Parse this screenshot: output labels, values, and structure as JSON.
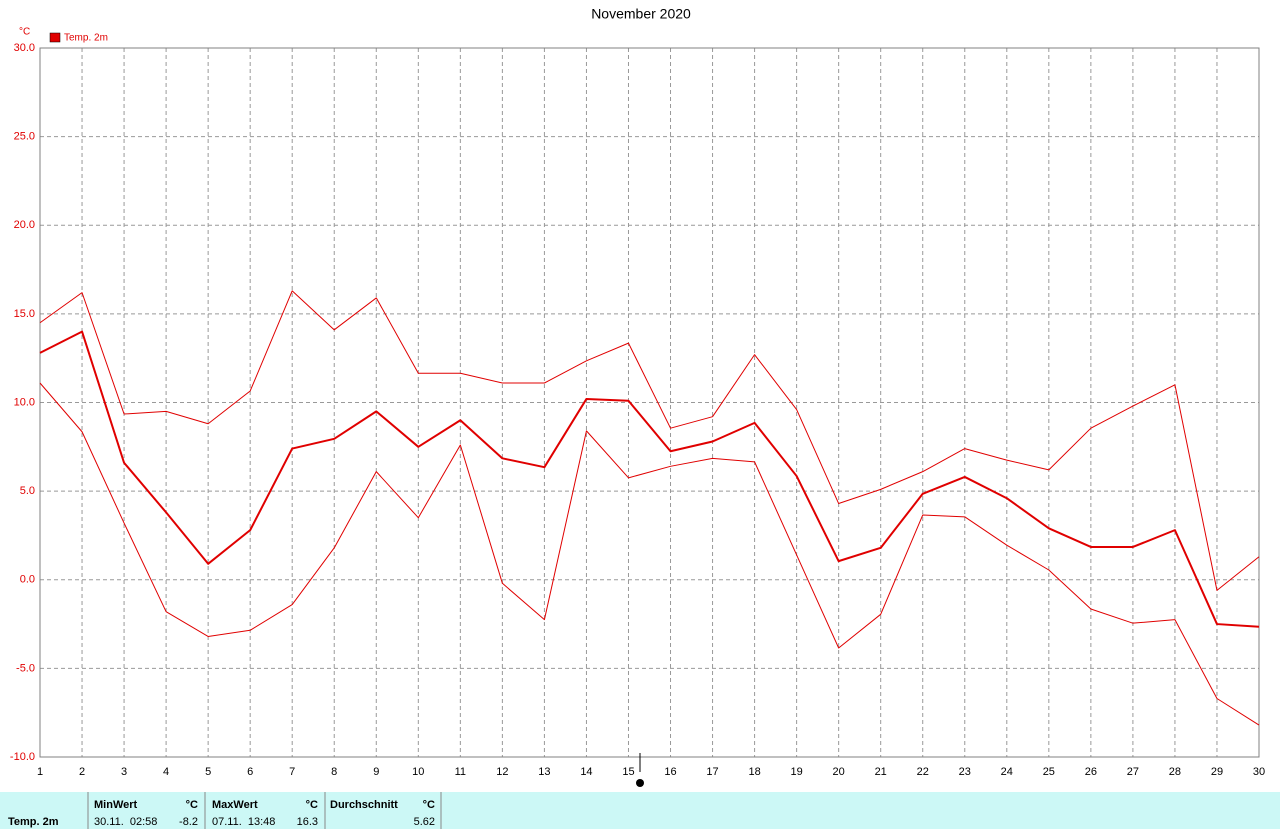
{
  "chart_data": {
    "type": "line",
    "title": "November 2020",
    "y_unit": "°C",
    "legend": [
      {
        "name": "Temp. 2m",
        "color": "#e00000"
      }
    ],
    "x": [
      1,
      2,
      3,
      4,
      5,
      6,
      7,
      8,
      9,
      10,
      11,
      12,
      13,
      14,
      15,
      16,
      17,
      18,
      19,
      20,
      21,
      22,
      23,
      24,
      25,
      26,
      27,
      28,
      29,
      30
    ],
    "xlim": [
      1,
      30
    ],
    "xticks": [
      1,
      2,
      3,
      4,
      5,
      6,
      7,
      8,
      9,
      10,
      11,
      12,
      13,
      14,
      15,
      16,
      17,
      18,
      19,
      20,
      21,
      22,
      23,
      24,
      25,
      26,
      27,
      28,
      29,
      30
    ],
    "ylim": [
      -10,
      30
    ],
    "yticks": [
      {
        "value": -10,
        "label": "-10.0"
      },
      {
        "value": -5,
        "label": "-5.0"
      },
      {
        "value": 0,
        "label": "0.0"
      },
      {
        "value": 5,
        "label": "5.0"
      },
      {
        "value": 10,
        "label": "10.0"
      },
      {
        "value": 15,
        "label": "15.0"
      },
      {
        "value": 20,
        "label": "20.0"
      },
      {
        "value": 25,
        "label": "25.0"
      },
      {
        "value": 30,
        "label": "30.0"
      }
    ],
    "grid": true,
    "series": [
      {
        "color": "#e00000",
        "line_width": 2,
        "values": [
          12.8,
          14.0,
          6.6,
          3.8,
          0.9,
          2.8,
          7.4,
          7.95,
          9.5,
          7.5,
          9.0,
          6.85,
          6.35,
          10.2,
          10.1,
          7.25,
          7.8,
          8.85,
          5.85,
          1.05,
          1.8,
          4.85,
          5.8,
          4.6,
          2.9,
          1.85,
          1.85,
          2.8,
          -2.5,
          -2.65
        ]
      },
      {
        "color": "#e00000",
        "line_width": 1,
        "values": [
          14.5,
          16.2,
          9.35,
          9.5,
          8.8,
          10.65,
          16.3,
          14.1,
          15.9,
          11.65,
          11.65,
          11.1,
          11.1,
          12.35,
          13.35,
          8.55,
          9.2,
          12.7,
          9.6,
          4.3,
          5.1,
          6.1,
          7.4,
          6.75,
          6.2,
          8.55,
          9.8,
          11.0,
          -0.6,
          1.3
        ]
      },
      {
        "color": "#e00000",
        "line_width": 1,
        "values": [
          11.1,
          8.35,
          3.2,
          -1.8,
          -3.2,
          -2.85,
          -1.4,
          1.8,
          6.1,
          3.5,
          7.6,
          -0.2,
          -2.25,
          8.4,
          5.75,
          6.4,
          6.85,
          6.65,
          1.4,
          -3.85,
          -1.95,
          3.65,
          3.55,
          1.95,
          0.55,
          -1.65,
          -2.45,
          -2.25,
          -6.7,
          -8.2
        ]
      }
    ]
  },
  "footer": {
    "row_label": "Temp. 2m",
    "min": {
      "header": "MinWert",
      "unit": "°C",
      "time": "30.11.  02:58",
      "value": "-8.2"
    },
    "max": {
      "header": "MaxWert",
      "unit": "°C",
      "time": "07.11.  13:48",
      "value": "16.3"
    },
    "avg": {
      "header": "Durchschnitt",
      "unit": "°C",
      "value": "5.62"
    }
  }
}
